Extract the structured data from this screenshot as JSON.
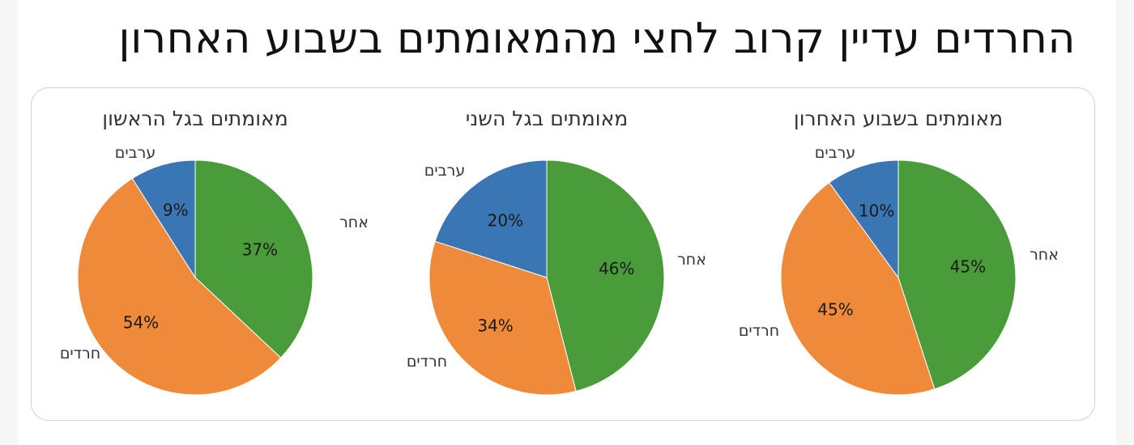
{
  "page": {
    "title": "החרדים עדיין קרוב לחצי מהמאומתים בשבוע האחרון"
  },
  "chart_data": [
    {
      "type": "pie",
      "title": "מאומתים בגל הראשון",
      "labels": [
        "אחר",
        "חרדים",
        "ערבים"
      ],
      "values": [
        37,
        54,
        9
      ],
      "value_labels": [
        "37%",
        "54%",
        "9%"
      ],
      "colors": [
        "#4a9b3a",
        "#ee8a3a",
        "#3a76b3"
      ]
    },
    {
      "type": "pie",
      "title": "מאומתים בגל השני",
      "labels": [
        "אחר",
        "חרדים",
        "ערבים"
      ],
      "values": [
        46,
        34,
        20
      ],
      "value_labels": [
        "46%",
        "34%",
        "20%"
      ],
      "colors": [
        "#4a9b3a",
        "#ee8a3a",
        "#3a76b3"
      ]
    },
    {
      "type": "pie",
      "title": "מאומתים בשבוע האחרון",
      "labels": [
        "אחר",
        "חרדים",
        "ערבים"
      ],
      "values": [
        45,
        45,
        10
      ],
      "value_labels": [
        "45%",
        "45%",
        "10%"
      ],
      "colors": [
        "#4a9b3a",
        "#ee8a3a",
        "#3a76b3"
      ]
    }
  ]
}
